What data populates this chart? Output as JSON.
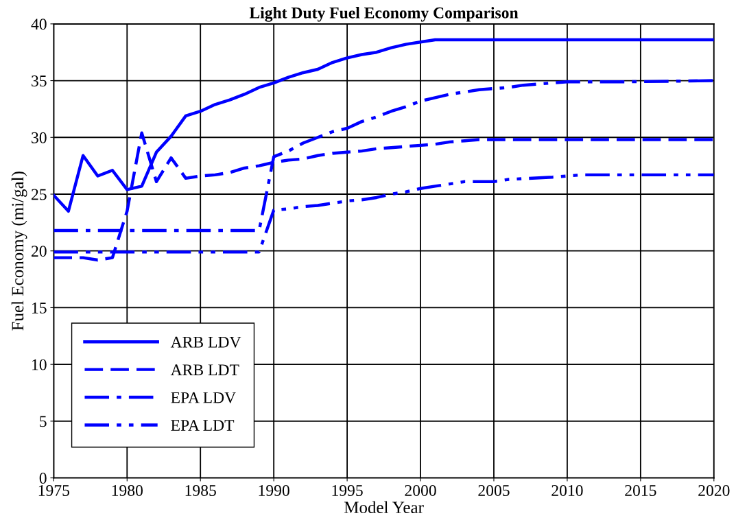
{
  "chart_data": {
    "type": "line",
    "title": "Light Duty Fuel Economy Comparison",
    "xlabel": "Model Year",
    "ylabel": "Fuel Economy (mi/gal)",
    "xlim": [
      1975,
      2020
    ],
    "xticks": [
      1975,
      1980,
      1985,
      1990,
      1995,
      2000,
      2005,
      2010,
      2015,
      2020
    ],
    "ylim": [
      0,
      40
    ],
    "yticks": [
      0,
      5,
      10,
      15,
      20,
      25,
      30,
      35,
      40
    ],
    "grid": true,
    "legend": "bottom left",
    "marker": "none",
    "series": [
      {
        "name": "ARB LDV",
        "color": "#0000ff",
        "line_style": "solid",
        "x": [
          1975,
          1976,
          1977,
          1978,
          1979,
          1980,
          1981,
          1982,
          1983,
          1984,
          1985,
          1986,
          1987,
          1988,
          1989,
          1990,
          1991,
          1992,
          1993,
          1994,
          1995,
          1996,
          1997,
          1998,
          1999,
          2000,
          2001,
          2020
        ],
        "values": [
          24.9,
          23.5,
          28.4,
          26.6,
          27.1,
          25.4,
          25.7,
          28.7,
          30.1,
          31.9,
          32.3,
          32.9,
          33.3,
          33.8,
          34.4,
          34.8,
          35.3,
          35.7,
          36.0,
          36.6,
          37.0,
          37.3,
          37.5,
          37.9,
          38.2,
          38.4,
          38.6,
          38.6
        ]
      },
      {
        "name": "ARB LDT",
        "color": "#0000ff",
        "line_style": "dashed",
        "x": [
          1975,
          1977,
          1978,
          1979,
          1980,
          1981,
          1982,
          1983,
          1984,
          1985,
          1986,
          1987,
          1988,
          1989,
          1990,
          1991,
          1992,
          1993,
          1994,
          1995,
          1996,
          1997,
          1998,
          1999,
          2000,
          2001,
          2002,
          2003,
          2004,
          2020
        ],
        "values": [
          19.4,
          19.4,
          19.2,
          19.4,
          23.5,
          30.4,
          26.1,
          28.2,
          26.4,
          26.6,
          26.7,
          26.9,
          27.3,
          27.5,
          27.8,
          28.0,
          28.1,
          28.4,
          28.6,
          28.7,
          28.8,
          29.0,
          29.1,
          29.2,
          29.3,
          29.4,
          29.6,
          29.7,
          29.8,
          29.8
        ]
      },
      {
        "name": "EPA LDV",
        "color": "#0000ff",
        "line_style": "dashdot",
        "x": [
          1975,
          1989,
          1990,
          1991,
          1992,
          1993,
          1994,
          1995,
          1996,
          1997,
          1998,
          1999,
          2000,
          2001,
          2002,
          2003,
          2004,
          2005,
          2006,
          2007,
          2008,
          2009,
          2010,
          2014,
          2020
        ],
        "values": [
          21.8,
          21.8,
          28.3,
          28.8,
          29.5,
          30.0,
          30.5,
          30.8,
          31.4,
          31.8,
          32.3,
          32.7,
          33.2,
          33.5,
          33.8,
          34.0,
          34.2,
          34.3,
          34.4,
          34.6,
          34.7,
          34.8,
          34.9,
          34.9,
          35.0
        ]
      },
      {
        "name": "EPA LDT",
        "color": "#0000ff",
        "line_style": "dashdotdot",
        "x": [
          1975,
          1989,
          1990,
          1991,
          1992,
          1993,
          1994,
          1995,
          1996,
          1997,
          1998,
          1999,
          2000,
          2001,
          2002,
          2003,
          2005,
          2006,
          2009,
          2010,
          2011,
          2020
        ],
        "values": [
          19.9,
          19.9,
          23.6,
          23.7,
          23.9,
          24.0,
          24.2,
          24.4,
          24.5,
          24.7,
          25.0,
          25.2,
          25.5,
          25.7,
          25.9,
          26.1,
          26.1,
          26.3,
          26.5,
          26.6,
          26.7,
          26.7
        ]
      }
    ]
  }
}
